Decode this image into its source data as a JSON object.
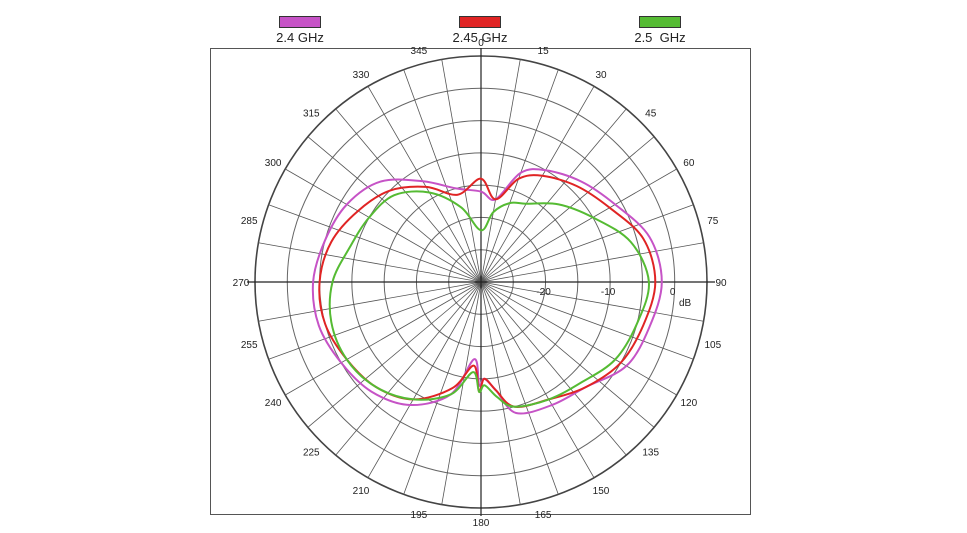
{
  "chart_data": {
    "type": "polar-line",
    "radial_unit": "dB",
    "radial_ticks": [
      -20,
      -10,
      0
    ],
    "radial_range": [
      -30,
      5
    ],
    "angle_ticks": [
      "0",
      "15",
      "30",
      "45",
      "60",
      "75",
      "90",
      "105",
      "120",
      "135",
      "150",
      "165",
      "180",
      "195",
      "210",
      "225",
      "240",
      "255",
      "270",
      "285",
      "300",
      "315",
      "330",
      "345"
    ],
    "legend_placement": "top",
    "series": [
      {
        "name": "2.4 GHz",
        "color": "#c653c6",
        "points": [
          [
            0,
            -16
          ],
          [
            10,
            -17
          ],
          [
            20,
            -12
          ],
          [
            30,
            -10
          ],
          [
            45,
            -8
          ],
          [
            60,
            -6
          ],
          [
            75,
            -3
          ],
          [
            90,
            -2
          ],
          [
            105,
            -3
          ],
          [
            120,
            -4
          ],
          [
            135,
            -7
          ],
          [
            150,
            -8
          ],
          [
            165,
            -9
          ],
          [
            172,
            -13
          ],
          [
            178,
            -15
          ],
          [
            181,
            -14
          ],
          [
            185,
            -18
          ],
          [
            195,
            -12
          ],
          [
            210,
            -8
          ],
          [
            225,
            -6
          ],
          [
            240,
            -5
          ],
          [
            255,
            -4
          ],
          [
            270,
            -4
          ],
          [
            285,
            -5
          ],
          [
            300,
            -6
          ],
          [
            315,
            -8
          ],
          [
            330,
            -12
          ],
          [
            345,
            -15
          ]
        ]
      },
      {
        "name": "2.45 GHz",
        "color": "#e02424",
        "points": [
          [
            0,
            -14
          ],
          [
            10,
            -17
          ],
          [
            20,
            -13
          ],
          [
            30,
            -11
          ],
          [
            45,
            -9
          ],
          [
            60,
            -7
          ],
          [
            75,
            -4
          ],
          [
            90,
            -3
          ],
          [
            105,
            -4
          ],
          [
            120,
            -5
          ],
          [
            135,
            -7
          ],
          [
            150,
            -9
          ],
          [
            165,
            -10
          ],
          [
            172,
            -13
          ],
          [
            178,
            -15
          ],
          [
            181,
            -13
          ],
          [
            185,
            -17
          ],
          [
            195,
            -13
          ],
          [
            210,
            -9
          ],
          [
            225,
            -7
          ],
          [
            240,
            -6
          ],
          [
            255,
            -5
          ],
          [
            270,
            -5
          ],
          [
            285,
            -6
          ],
          [
            300,
            -8
          ],
          [
            315,
            -10
          ],
          [
            330,
            -13
          ],
          [
            345,
            -16
          ]
        ]
      },
      {
        "name": "2.5  GHz",
        "color": "#55bb33",
        "points": [
          [
            0,
            -22
          ],
          [
            10,
            -19
          ],
          [
            20,
            -17
          ],
          [
            30,
            -16
          ],
          [
            45,
            -13
          ],
          [
            60,
            -10
          ],
          [
            75,
            -6
          ],
          [
            90,
            -4
          ],
          [
            105,
            -5
          ],
          [
            120,
            -6
          ],
          [
            135,
            -8
          ],
          [
            150,
            -9
          ],
          [
            165,
            -10
          ],
          [
            172,
            -12
          ],
          [
            178,
            -14
          ],
          [
            181,
            -13
          ],
          [
            185,
            -16
          ],
          [
            195,
            -12
          ],
          [
            210,
            -9
          ],
          [
            225,
            -7
          ],
          [
            240,
            -6
          ],
          [
            255,
            -6
          ],
          [
            270,
            -7
          ],
          [
            285,
            -9
          ],
          [
            300,
            -10
          ],
          [
            315,
            -11
          ],
          [
            330,
            -14
          ],
          [
            345,
            -18
          ]
        ]
      }
    ]
  }
}
